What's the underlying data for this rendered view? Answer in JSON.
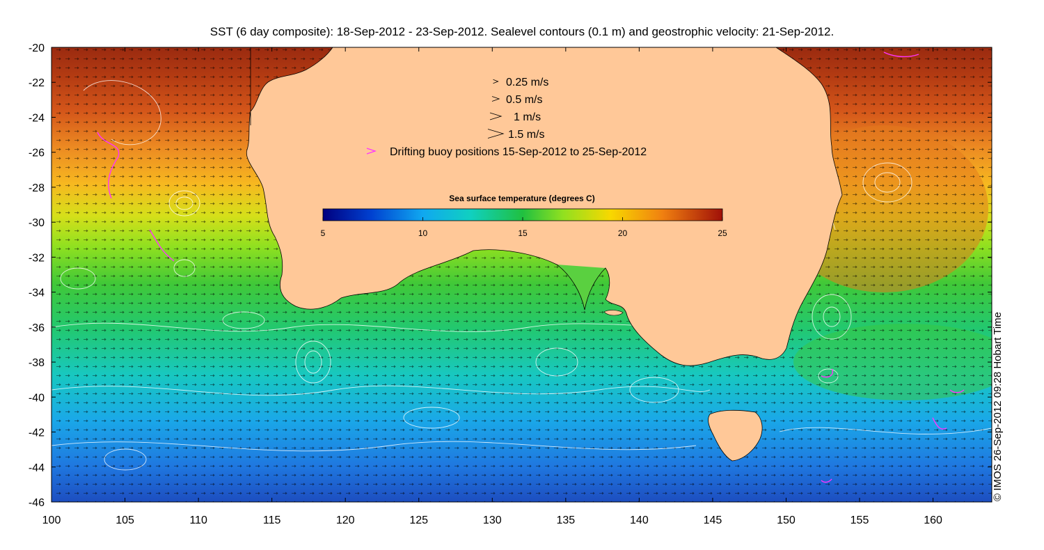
{
  "figure": {
    "title": "SST (6 day composite): 18-Sep-2012 - 23-Sep-2012. Sealevel contours (0.1 m) and geostrophic velocity: 21-Sep-2012.",
    "credit": "© IMOS 26-Sep-2012 09:28 Hobart Time"
  },
  "axes": {
    "x_ticks": [
      "100",
      "105",
      "110",
      "115",
      "120",
      "125",
      "130",
      "135",
      "140",
      "145",
      "150",
      "155",
      "160"
    ],
    "y_ticks": [
      "-20",
      "-22",
      "-24",
      "-26",
      "-28",
      "-30",
      "-32",
      "-34",
      "-36",
      "-38",
      "-40",
      "-42",
      "-44",
      "-46"
    ],
    "xlim": [
      100,
      164
    ],
    "ylim": [
      -46,
      -20
    ]
  },
  "legend": {
    "items": [
      {
        "label": "0.25 m/s",
        "speed": 0.25
      },
      {
        "label": "0.5 m/s",
        "speed": 0.5
      },
      {
        "label": "1 m/s",
        "speed": 1
      },
      {
        "label": "1.5 m/s",
        "speed": 1.5
      }
    ],
    "buoy_label": "Drifting buoy positions 15-Sep-2012 to 25-Sep-2012",
    "buoy_color": "#ff33ff"
  },
  "colorbar": {
    "title": "Sea surface temperature (degrees C)",
    "ticks": [
      "5",
      "10",
      "15",
      "20",
      "25"
    ],
    "range": [
      5,
      25
    ]
  },
  "colors": {
    "land": "#ffc898",
    "contour": "#ffffff",
    "arrows": "#000000"
  }
}
